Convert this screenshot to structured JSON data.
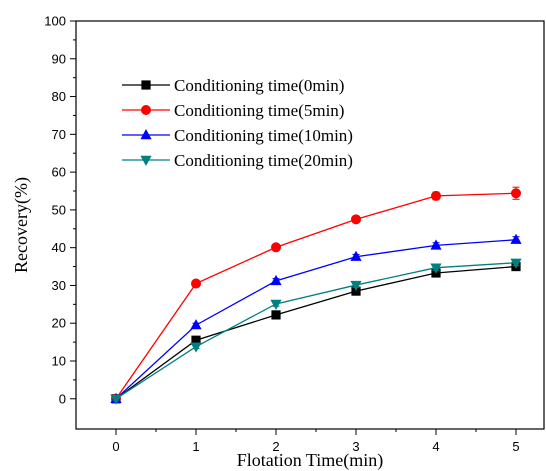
{
  "chart_data": {
    "type": "line",
    "xlabel": "Flotation Time(min)",
    "ylabel": "Recovery(%)",
    "xlim": [
      -0.5,
      5.35
    ],
    "ylim": [
      -8,
      100
    ],
    "xticks": [
      0,
      1,
      2,
      3,
      4,
      5
    ],
    "yticks": [
      0,
      10,
      20,
      30,
      40,
      50,
      60,
      70,
      80,
      90,
      100
    ],
    "grid": false,
    "legend_position": "top-left",
    "x": [
      0,
      1,
      2,
      3,
      4,
      5
    ],
    "series": [
      {
        "name": "Conditioning time(0min)",
        "color": "#000000",
        "marker": "square",
        "values": [
          0,
          15.5,
          22.2,
          28.5,
          33.3,
          35.0
        ],
        "errors": [
          0.4,
          0.5,
          0.6,
          0.6,
          0.7,
          0.8
        ]
      },
      {
        "name": "Conditioning time(5min)",
        "color": "#ff0000",
        "marker": "circle",
        "values": [
          0,
          30.5,
          40.1,
          47.5,
          53.7,
          54.4
        ],
        "errors": [
          0.4,
          0.5,
          0.6,
          0.6,
          1.0,
          1.6
        ]
      },
      {
        "name": "Conditioning time(10min)",
        "color": "#0000ff",
        "marker": "triangle-up",
        "values": [
          0,
          19.5,
          31.2,
          37.6,
          40.6,
          42.1
        ],
        "errors": [
          0.4,
          0.5,
          0.6,
          0.6,
          0.7,
          0.8
        ]
      },
      {
        "name": "Conditioning time(20min)",
        "color": "#008080",
        "marker": "triangle-down",
        "values": [
          0,
          13.8,
          25.1,
          30.1,
          34.7,
          36.0
        ],
        "errors": [
          0.4,
          0.5,
          0.6,
          0.6,
          0.7,
          0.8
        ]
      }
    ]
  }
}
